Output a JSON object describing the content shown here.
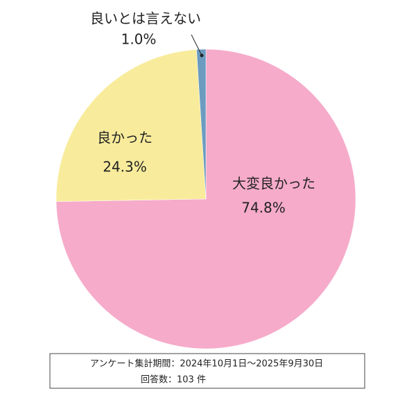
{
  "chart_data": {
    "type": "pie",
    "categories": [
      "大変良かった",
      "良かった",
      "良いとは言えない"
    ],
    "values": [
      74.8,
      24.3,
      1.0
    ],
    "value_labels": [
      "74.8%",
      "24.3%",
      "1.0%"
    ],
    "colors": [
      "#f6abca",
      "#f8ec9c",
      "#6b9cc0"
    ],
    "notes": [
      "アンケート集計期間：2024年10月1日～2025年9月30日",
      "回答数：103 件"
    ]
  }
}
